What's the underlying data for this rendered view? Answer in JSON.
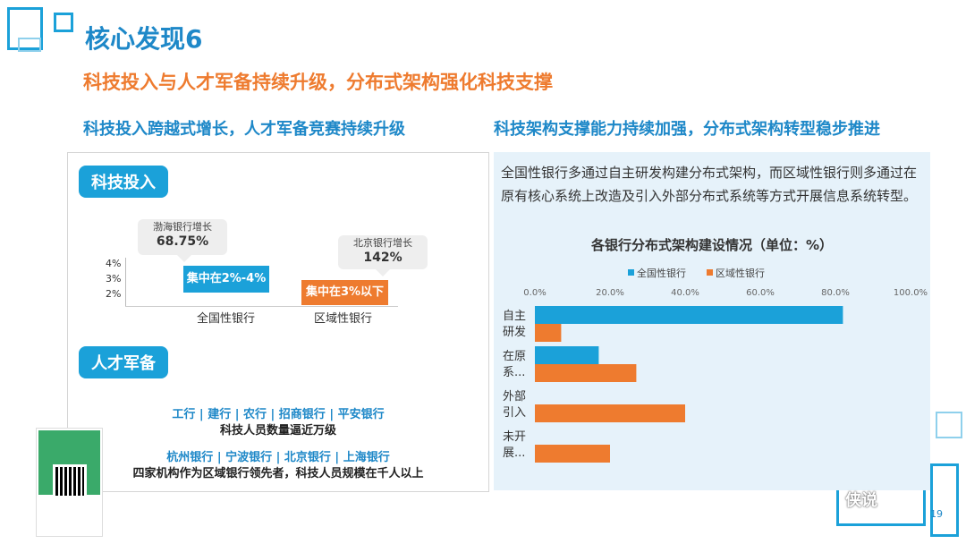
{
  "title": "核心发现6",
  "subtitle": "科技投入与人才军备持续升级，分布式架构强化科技支撑",
  "left_heading": "科技投入跨越式增长，人才军备竞赛持续升级",
  "right_heading": "科技架构支撑能力持续加强，分布式架构转型稳步推进",
  "tech_investment": {
    "label": "科技投入",
    "y_ticks": [
      "4%",
      "3%",
      "2%"
    ],
    "national": {
      "category": "全国性银行",
      "range": "集中在2%-4%",
      "callout_name": "渤海银行增长",
      "callout_value": "68.75%"
    },
    "regional": {
      "category": "区域性银行",
      "range": "集中在3%以下",
      "callout_name": "北京银行增长",
      "callout_value": "142%"
    }
  },
  "talent": {
    "label": "人才军备",
    "national_banks": "工行 | 建行 | 农行 | 招商银行 | 平安银行",
    "national_note": "科技人员数量逼近万级",
    "regional_banks": "杭州银行 | 宁波银行 | 北京银行 | 上海银行",
    "regional_note": "四家机构作为区域银行领先者，科技人员规模在千人以上"
  },
  "architecture_description": "全国性银行多通过自主研发构建分布式架构，而区域性银行则多通过在原有核心系统上改造及引入外部分布式系统等方式开展信息系统转型。",
  "colors": {
    "national": "#1ba1d9",
    "regional": "#ee7b2f",
    "heading": "#1e88c8",
    "accent": "#ee7b2f"
  },
  "chart_data": {
    "type": "bar",
    "orientation": "horizontal",
    "title": "各银行分布式架构建设情况（单位：%）",
    "categories": [
      "自主研发",
      "在原系...",
      "外部引入",
      "未开展..."
    ],
    "category_lines": [
      [
        "自主",
        "研发"
      ],
      [
        "在原",
        "系..."
      ],
      [
        "外部",
        "引入"
      ],
      [
        "未开",
        "展..."
      ]
    ],
    "x_ticks": [
      "0.0%",
      "20.0%",
      "40.0%",
      "60.0%",
      "80.0%",
      "100.0%"
    ],
    "xlim": [
      0,
      100
    ],
    "legend_position": "top",
    "series": [
      {
        "name": "全国性银行",
        "color": "#1ba1d9",
        "values": [
          82,
          17,
          null,
          null
        ]
      },
      {
        "name": "区域性银行",
        "color": "#ee7b2f",
        "values": [
          7,
          27,
          40,
          20
        ]
      }
    ]
  },
  "watermark": "侠说",
  "page_number": "19"
}
